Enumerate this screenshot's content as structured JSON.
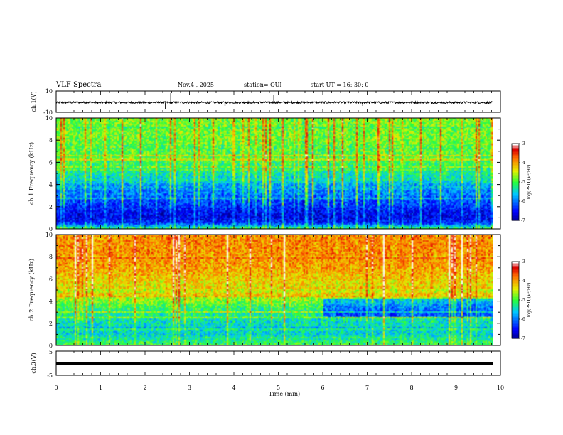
{
  "header": {
    "title": "VLF Spectra",
    "date": "Nov.4 , 2025",
    "station": "station= OUI",
    "start": "start UT = 16: 30: 0"
  },
  "chart_data": [
    {
      "type": "line",
      "name": "ch1-waveform",
      "ylabel": "ch.1(V)",
      "ylim": [
        -10,
        10
      ],
      "y_ticks": [
        "10",
        "-10"
      ],
      "xlim": [
        0,
        10
      ],
      "baseline": -0.8,
      "spikes": [
        [
          2.58,
          8
        ],
        [
          2.46,
          -7
        ],
        [
          4.9,
          6
        ],
        [
          3.8,
          -4
        ],
        [
          6.9,
          -4
        ]
      ]
    },
    {
      "type": "heatmap",
      "name": "ch1-spectrogram",
      "ylabel": "ch.1 Frequency (kHz)",
      "ylim": [
        0,
        10
      ],
      "y_ticks": [
        "0",
        "2",
        "4",
        "6",
        "8",
        "10"
      ],
      "xlim": [
        0,
        9.82
      ],
      "colorbar": {
        "label": "log(PSD)(V²/Hz)",
        "range": [
          -7,
          -3
        ],
        "ticks": [
          "-3",
          "-4",
          "-5",
          "-6",
          "-7"
        ]
      },
      "level_profile_freq_khz": [
        0,
        0.5,
        1,
        1.5,
        2,
        2.5,
        3,
        3.5,
        4,
        5,
        6,
        7,
        8,
        9,
        10
      ],
      "level_profile_logpsd": [
        -5.2,
        -6.4,
        -6.6,
        -6.5,
        -6.3,
        -6.2,
        -6.0,
        -5.8,
        -5.6,
        -5.3,
        -5.0,
        -4.9,
        -4.8,
        -4.8,
        -4.8
      ]
    },
    {
      "type": "heatmap",
      "name": "ch2-spectrogram",
      "ylabel": "ch.2 Frequency (kHz)",
      "ylim": [
        0,
        10
      ],
      "y_ticks": [
        "0",
        "2",
        "4",
        "6",
        "8",
        "10"
      ],
      "xlim": [
        0,
        9.82
      ],
      "colorbar": {
        "label": "log(PSD)(V²/Hz)",
        "range": [
          -7,
          -3
        ],
        "ticks": [
          "-3",
          "-4",
          "-5",
          "-6",
          "-7"
        ]
      },
      "level_profile_freq_khz": [
        0,
        0.5,
        1,
        1.5,
        2,
        2.5,
        3,
        3.5,
        4,
        5,
        6,
        7,
        8,
        9,
        10
      ],
      "level_profile_logpsd": [
        -5.0,
        -5.3,
        -5.5,
        -5.4,
        -5.4,
        -5.3,
        -5.2,
        -5.0,
        -4.7,
        -4.4,
        -4.2,
        -4.0,
        -3.9,
        -3.9,
        -3.9
      ],
      "shift_after_min": 6.0
    },
    {
      "type": "line",
      "name": "ch3-waveform",
      "ylabel": "ch.3(V)",
      "ylim": [
        -5,
        5
      ],
      "y_ticks": [
        "5",
        "-5"
      ],
      "xlim": [
        0,
        10
      ],
      "baseline": 0
    }
  ],
  "xaxis": {
    "label": "Time (min)",
    "ticks": [
      "0",
      "1",
      "2",
      "3",
      "4",
      "5",
      "6",
      "7",
      "8",
      "9",
      "10"
    ]
  }
}
